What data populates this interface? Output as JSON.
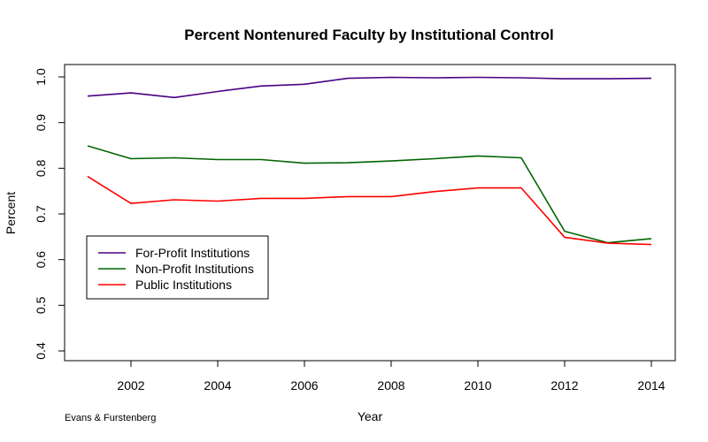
{
  "chart_data": {
    "type": "line",
    "title": "Percent Nontenured Faculty by Institutional Control",
    "xlabel": "Year",
    "ylabel": "Percent",
    "xlim": [
      2001,
      2014
    ],
    "ylim": [
      0.4,
      1.0
    ],
    "x_ticks": [
      2002,
      2004,
      2006,
      2008,
      2010,
      2012,
      2014
    ],
    "y_ticks": [
      0.4,
      0.5,
      0.6,
      0.7,
      0.8,
      0.9,
      1.0
    ],
    "y_tick_labels": [
      "0.4",
      "0.5",
      "0.6",
      "0.7",
      "0.8",
      "0.9",
      "1.0"
    ],
    "grid": false,
    "legend_position": "left",
    "x": [
      2001,
      2002,
      2003,
      2004,
      2005,
      2006,
      2007,
      2008,
      2009,
      2010,
      2011,
      2012,
      2013,
      2014
    ],
    "series": [
      {
        "name": "For-Profit Institutions",
        "color": "#4b0082",
        "values": [
          0.958,
          0.965,
          0.955,
          0.968,
          0.98,
          0.984,
          0.997,
          0.999,
          0.998,
          0.999,
          0.998,
          0.996,
          0.996,
          0.997
        ]
      },
      {
        "name": "Non-Profit Institutions",
        "color": "#006400",
        "values": [
          0.849,
          0.821,
          0.823,
          0.819,
          0.819,
          0.811,
          0.812,
          0.816,
          0.821,
          0.827,
          0.823,
          0.662,
          0.637,
          0.646
        ]
      },
      {
        "name": "Public Institutions",
        "color": "#ff0000",
        "values": [
          0.782,
          0.723,
          0.731,
          0.728,
          0.734,
          0.734,
          0.738,
          0.738,
          0.749,
          0.757,
          0.757,
          0.649,
          0.636,
          0.633
        ]
      }
    ],
    "annotation": "Evans & Furstenberg"
  }
}
